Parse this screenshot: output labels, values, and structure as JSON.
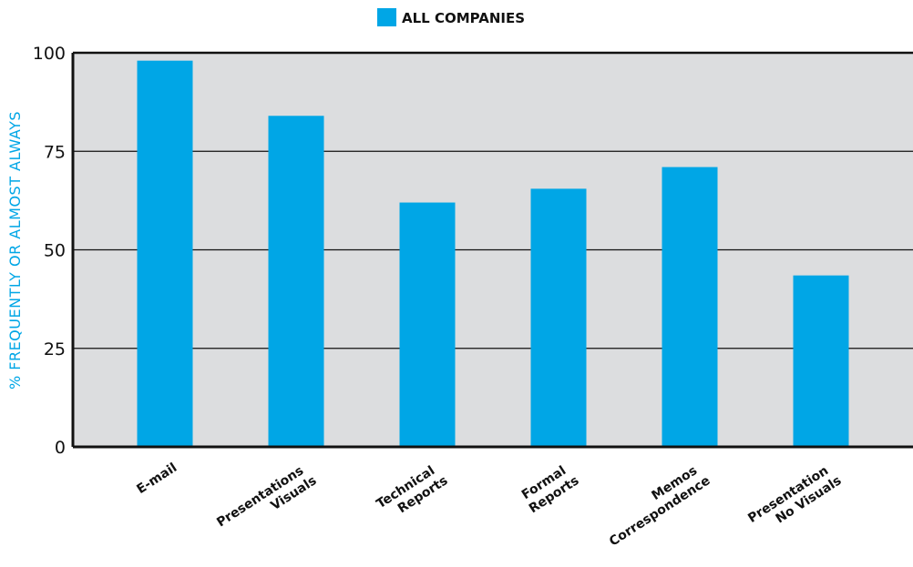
{
  "chart_data": {
    "type": "bar",
    "categories": [
      [
        "E-mail"
      ],
      [
        "Presentations",
        "Visuals"
      ],
      [
        "Technical",
        "Reports"
      ],
      [
        "Formal",
        "Reports"
      ],
      [
        "Memos",
        "Correspondence"
      ],
      [
        "Presentation",
        "No Visuals"
      ]
    ],
    "series": [
      {
        "name": "ALL COMPANIES",
        "values": [
          98,
          84,
          62,
          65.5,
          71,
          43.5
        ]
      }
    ],
    "title": "",
    "xlabel": "",
    "ylabel": "% FREQUENTLY OR ALMOST ALWAYS",
    "ylim": [
      0,
      100
    ],
    "yticks": [
      0,
      25,
      50,
      75,
      100
    ],
    "grid": true,
    "legend_position": "top-center",
    "colors": {
      "bar": "#00A6E6",
      "plot_background": "#DCDDDF",
      "axis": "#111111",
      "ylabel": "#00A6E6"
    }
  }
}
